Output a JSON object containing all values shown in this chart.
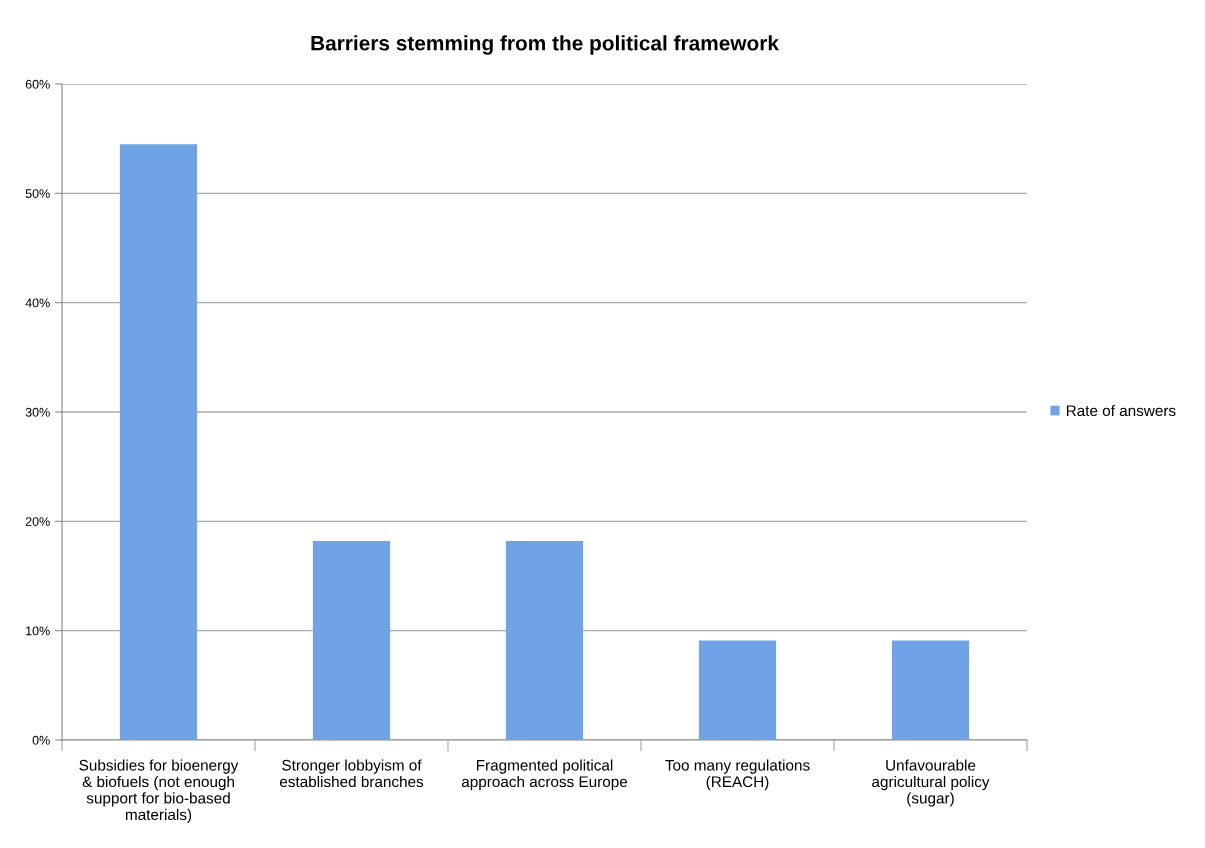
{
  "chart_data": {
    "type": "bar",
    "title": "Barriers stemming from the political framework",
    "categories": [
      "Subsidies for bioenergy & biofuels (not enough support for bio-based materials)",
      "Stronger lobbyism of established branches",
      "Fragmented political approach across Europe",
      "Too many regulations (REACH)",
      "Unfavourable agricultural policy (sugar)"
    ],
    "series": [
      {
        "name": "Rate of answers",
        "color": "#6fa3e6",
        "values": [
          54.5,
          18.2,
          18.2,
          9.1,
          9.1
        ]
      }
    ],
    "ylim": [
      0,
      60
    ],
    "yticks": [
      {
        "value": 0,
        "label": "0%"
      },
      {
        "value": 10,
        "label": "10%"
      },
      {
        "value": 20,
        "label": "20%"
      },
      {
        "value": 30,
        "label": "30%"
      },
      {
        "value": 40,
        "label": "40%"
      },
      {
        "value": 50,
        "label": "50%"
      },
      {
        "value": 60,
        "label": "60%"
      }
    ],
    "grid": "y",
    "legend": "right"
  }
}
